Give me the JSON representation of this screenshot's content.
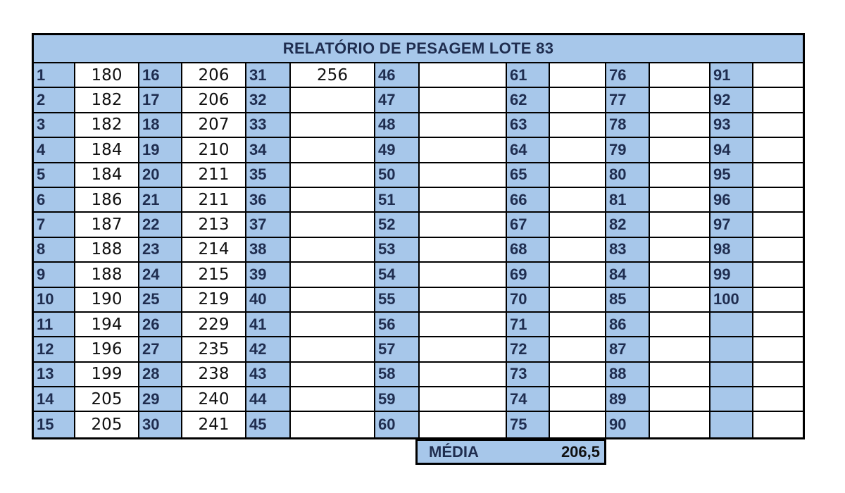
{
  "title": "RELATÓRIO DE PESAGEM LOTE 83",
  "weights": [
    "180",
    "182",
    "182",
    "184",
    "184",
    "186",
    "187",
    "188",
    "188",
    "190",
    "194",
    "196",
    "199",
    "205",
    "205",
    "206",
    "206",
    "207",
    "210",
    "211",
    "211",
    "213",
    "214",
    "215",
    "219",
    "229",
    "235",
    "238",
    "240",
    "241",
    "256"
  ],
  "extra_label_cells_col7": [
    "",
    "",
    "",
    "",
    ""
  ],
  "summary": {
    "label": "MÉDIA",
    "value": "206,5"
  },
  "colors": {
    "header_fill": "#a7c7ea",
    "header_text": "#1f2d4f",
    "border": "#000000"
  }
}
